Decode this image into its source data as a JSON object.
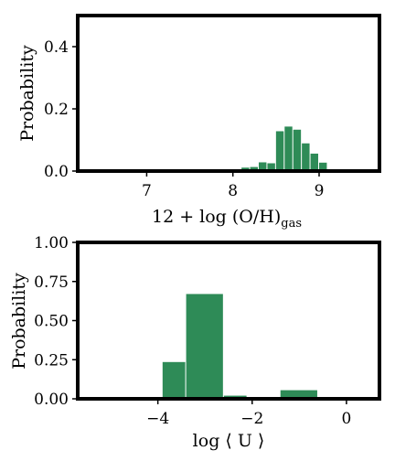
{
  "colors": {
    "bar": "#2e8b57",
    "frame": "#000000",
    "background": "#ffffff"
  },
  "chart_data": [
    {
      "type": "bar",
      "xlabel": "12 + log (O/H)",
      "xlabel_subscript": "gas",
      "ylabel": "Probability",
      "xlim": [
        6.2,
        9.7
      ],
      "ylim": [
        0,
        0.5
      ],
      "xticks": [
        {
          "value": 7,
          "label": "7"
        },
        {
          "value": 8,
          "label": "8"
        },
        {
          "value": 9,
          "label": "9"
        }
      ],
      "yticks": [
        {
          "value": 0.0,
          "label": "0.0"
        },
        {
          "value": 0.2,
          "label": "0.2"
        },
        {
          "value": 0.4,
          "label": "0.4"
        }
      ],
      "bin_width": 0.1,
      "bins": [
        {
          "x": 8.05,
          "value": 0.004
        },
        {
          "x": 8.15,
          "value": 0.011
        },
        {
          "x": 8.25,
          "value": 0.013
        },
        {
          "x": 8.35,
          "value": 0.028
        },
        {
          "x": 8.45,
          "value": 0.025
        },
        {
          "x": 8.55,
          "value": 0.128
        },
        {
          "x": 8.65,
          "value": 0.143
        },
        {
          "x": 8.75,
          "value": 0.133
        },
        {
          "x": 8.85,
          "value": 0.089
        },
        {
          "x": 8.95,
          "value": 0.056
        },
        {
          "x": 9.05,
          "value": 0.027
        }
      ]
    },
    {
      "type": "bar",
      "xlabel": "log ⟨ U ⟩",
      "ylabel": "Probability",
      "xlim": [
        -5.7,
        0.7
      ],
      "ylim": [
        0,
        1.0
      ],
      "xticks": [
        {
          "value": -4,
          "label": "−4"
        },
        {
          "value": -2,
          "label": "−2"
        },
        {
          "value": 0,
          "label": "0"
        }
      ],
      "yticks": [
        {
          "value": 0.0,
          "label": "0.00"
        },
        {
          "value": 0.25,
          "label": "0.25"
        },
        {
          "value": 0.5,
          "label": "0.50"
        },
        {
          "value": 0.75,
          "label": "0.75"
        },
        {
          "value": 1.0,
          "label": "1.00"
        }
      ],
      "bins": [
        {
          "x0": -5.3,
          "x1": -4.8,
          "value": 0.0
        },
        {
          "x0": -4.8,
          "x1": -4.3,
          "value": 0.0
        },
        {
          "x0": -3.9,
          "x1": -3.4,
          "value": 0.235
        },
        {
          "x0": -3.4,
          "x1": -2.6,
          "value": 0.67
        },
        {
          "x0": -2.6,
          "x1": -2.1,
          "value": 0.02
        },
        {
          "x0": -2.1,
          "x1": -1.4,
          "value": 0.004
        },
        {
          "x0": -1.4,
          "x1": -0.6,
          "value": 0.055
        },
        {
          "x0": -0.6,
          "x1": 0.3,
          "value": 0.003
        }
      ]
    }
  ]
}
